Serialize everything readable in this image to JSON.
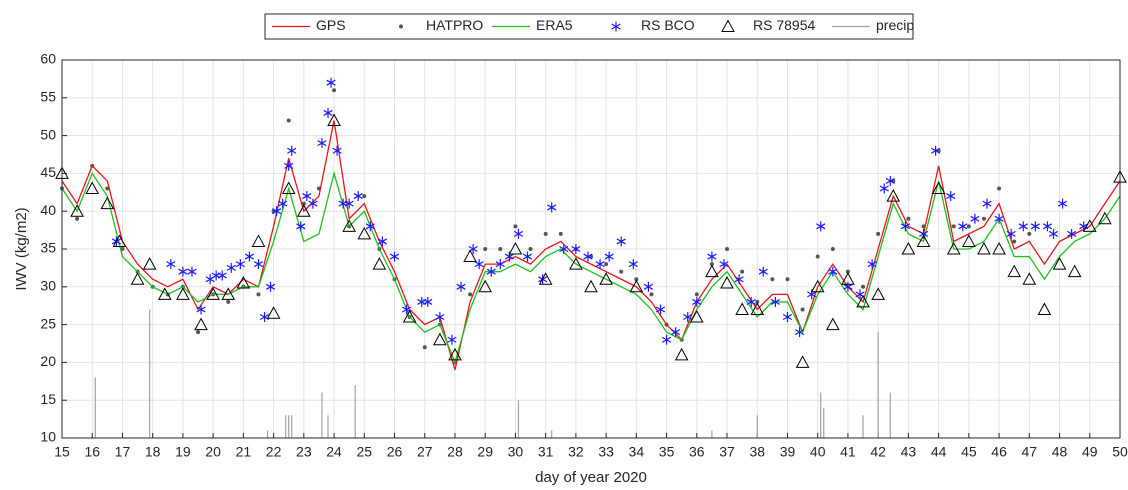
{
  "chart_data": {
    "type": "line",
    "xlabel": "day of year 2020",
    "ylabel": "IWV (kg/m2)",
    "xlim": [
      15,
      50
    ],
    "ylim": [
      10,
      60
    ],
    "xticks": [
      15,
      16,
      17,
      18,
      19,
      20,
      21,
      22,
      23,
      24,
      25,
      26,
      27,
      28,
      29,
      30,
      31,
      32,
      33,
      34,
      35,
      36,
      37,
      38,
      39,
      40,
      41,
      42,
      43,
      44,
      45,
      46,
      47,
      48,
      49,
      50
    ],
    "yticks": [
      10,
      15,
      20,
      25,
      30,
      35,
      40,
      45,
      50,
      55,
      60
    ],
    "grid": true,
    "legend": "top",
    "x": [
      15,
      15.5,
      16,
      16.5,
      17,
      17.5,
      18,
      18.5,
      19,
      19.5,
      20,
      20.5,
      21,
      21.5,
      22,
      22.5,
      23,
      23.5,
      24,
      24.5,
      25,
      25.5,
      26,
      26.5,
      27,
      27.5,
      28,
      28.5,
      29,
      29.5,
      30,
      30.5,
      31,
      31.5,
      32,
      32.5,
      33,
      33.5,
      34,
      34.5,
      35,
      35.5,
      36,
      36.5,
      37,
      37.5,
      38,
      38.5,
      39,
      39.5,
      40,
      40.5,
      41,
      41.5,
      42,
      42.5,
      43,
      43.5,
      44,
      44.5,
      45,
      45.5,
      46,
      46.5,
      47,
      47.5,
      48,
      48.5,
      49,
      49.5,
      50
    ],
    "series": [
      {
        "name": "GPS",
        "color": "#e8141b",
        "marker": "line",
        "values": [
          44,
          41,
          46,
          44,
          36,
          33,
          31,
          30,
          31,
          27,
          30,
          29,
          31,
          30,
          38,
          47,
          40,
          42,
          52,
          39,
          41,
          36,
          32,
          27,
          25,
          26,
          19,
          28,
          33,
          33,
          34,
          33,
          35,
          36,
          34,
          33,
          32,
          31,
          30,
          28,
          25,
          23,
          28,
          31,
          33,
          30,
          27,
          29,
          29,
          24,
          30,
          33,
          30,
          28,
          35,
          42,
          38,
          37,
          46,
          36,
          37,
          38,
          41,
          35,
          36,
          33,
          36,
          37,
          38,
          41,
          44
        ]
      },
      {
        "name": "HATPRO",
        "color": "#555555",
        "marker": "dot",
        "values": [
          43,
          39,
          46,
          43,
          35,
          32,
          30,
          29,
          30,
          24,
          29,
          28,
          30,
          29,
          40,
          52,
          41,
          43,
          56,
          38,
          42,
          35,
          31,
          26,
          22,
          25,
          20,
          29,
          35,
          35,
          38,
          35,
          37,
          37,
          35,
          34,
          33,
          32,
          31,
          29,
          25,
          23,
          29,
          33,
          35,
          32,
          28,
          31,
          31,
          27,
          34,
          35,
          32,
          30,
          37,
          44,
          39,
          38,
          48,
          38,
          38,
          39,
          43,
          36,
          37,
          null,
          null,
          null,
          null,
          null,
          null
        ]
      },
      {
        "name": "ERA5",
        "color": "#1fbf1f",
        "marker": "line",
        "values": [
          43,
          40,
          45,
          42,
          34,
          32,
          30,
          29,
          30,
          28,
          29,
          29,
          30,
          30,
          36,
          43,
          36,
          37,
          45,
          38,
          40,
          35,
          31,
          26,
          24,
          25,
          20,
          27,
          32,
          32,
          33,
          32,
          34,
          35,
          33,
          32,
          31,
          30,
          29,
          27,
          24,
          23,
          27,
          30,
          32,
          29,
          26,
          28,
          28,
          24,
          29,
          32,
          29,
          27,
          34,
          41,
          37,
          36,
          44,
          35,
          35,
          36,
          39,
          34,
          34,
          31,
          34,
          36,
          37,
          39,
          42
        ]
      },
      {
        "name": "RS BCO",
        "color": "#1a1aff",
        "marker": "star",
        "x": [
          16.8,
          18.6,
          19,
          19.3,
          19.6,
          19.9,
          20.1,
          20.3,
          20.6,
          20.9,
          21.2,
          21.5,
          21.7,
          21.9,
          22.1,
          22.3,
          22.5,
          22.6,
          22.9,
          23.1,
          23.3,
          23.6,
          23.8,
          23.9,
          24.1,
          24.3,
          24.5,
          24.8,
          25.2,
          25.6,
          26,
          26.4,
          26.9,
          27.1,
          27.5,
          27.9,
          28.2,
          28.6,
          28.8,
          29.2,
          29.5,
          29.8,
          30.1,
          30.4,
          30.9,
          31.2,
          31.6,
          32,
          32.4,
          32.8,
          33.1,
          33.5,
          33.9,
          34.4,
          34.8,
          35,
          35.3,
          35.7,
          36,
          36.5,
          36.9,
          37.4,
          37.8,
          38.2,
          38.6,
          39,
          39.4,
          39.8,
          40.1,
          40.5,
          41,
          41.4,
          41.8,
          42.2,
          42.4,
          42.9,
          43.5,
          43.9,
          44.4,
          44.8,
          45.2,
          45.6,
          46,
          46.4,
          46.8,
          47.2,
          47.6,
          47.8,
          48.1,
          48.4,
          48.8
        ],
        "values": [
          36,
          33,
          32,
          32,
          27,
          31,
          31.5,
          31.5,
          32.5,
          33,
          34,
          33,
          26,
          30,
          40,
          41,
          46,
          48,
          38,
          42,
          41,
          49,
          53,
          57,
          48,
          41,
          41,
          42,
          38,
          36,
          34,
          27,
          28,
          28,
          26,
          23,
          30,
          35,
          33,
          32,
          33,
          34,
          37,
          34,
          31,
          40.5,
          35,
          35,
          34,
          33,
          34,
          36,
          33,
          30,
          27,
          23,
          24,
          26,
          28,
          34,
          33,
          31,
          28,
          32,
          28,
          26,
          24,
          29,
          38,
          32,
          30,
          29,
          33,
          43,
          44,
          38,
          37,
          48,
          42,
          38,
          39,
          41,
          39,
          37,
          38,
          38,
          38,
          37,
          41,
          37,
          38
        ]
      },
      {
        "name": "RS 78954",
        "color": "#000000",
        "marker": "triangle",
        "x": [
          15,
          15.5,
          16,
          16.5,
          16.9,
          17.5,
          17.9,
          18.4,
          19,
          19.6,
          20,
          20.5,
          21,
          21.5,
          22,
          22.5,
          23,
          24,
          24.5,
          25,
          25.5,
          26.5,
          27.5,
          28,
          28.5,
          29,
          30,
          31,
          32,
          32.5,
          33,
          34,
          35.5,
          36,
          36.5,
          37,
          37.5,
          38,
          39.5,
          40,
          40.5,
          41,
          41.5,
          42,
          42.5,
          43,
          43.5,
          44,
          44.5,
          45,
          45.5,
          46,
          46.5,
          47,
          47.5,
          48,
          48.5,
          49,
          49.5,
          50
        ],
        "values": [
          45,
          40,
          43,
          41,
          36,
          31,
          33,
          29,
          29,
          25,
          29,
          29,
          30.5,
          36,
          26.5,
          43,
          40,
          52,
          38,
          37,
          33,
          26,
          23,
          21,
          34,
          30,
          35,
          31,
          33,
          30,
          31,
          30,
          21,
          26,
          32,
          30.5,
          27,
          27,
          20,
          30,
          25,
          31,
          28,
          29,
          42,
          35,
          36,
          43,
          35,
          36,
          35,
          35,
          32,
          31,
          27,
          33,
          32,
          38,
          39,
          44.5
        ]
      },
      {
        "name": "precip",
        "color": "#a0a0a0",
        "marker": "bar",
        "x": [
          16.1,
          17.9,
          21.8,
          22.4,
          22.5,
          22.6,
          23.6,
          23.8,
          24.7,
          30.1,
          31.2,
          36.5,
          38.0,
          40.1,
          40.2,
          41.5,
          42.0,
          42.4
        ],
        "values": [
          18,
          27,
          11,
          13,
          13,
          13,
          16,
          13,
          17,
          15,
          11,
          11,
          13,
          16,
          14,
          13,
          24,
          16
        ]
      }
    ]
  }
}
